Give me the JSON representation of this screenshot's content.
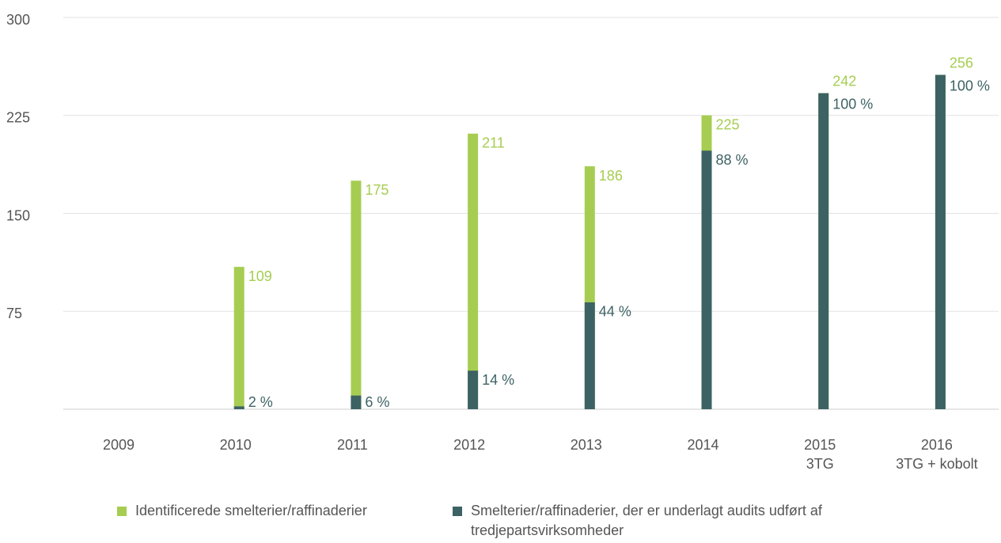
{
  "chart_data": {
    "type": "bar",
    "categories": [
      [
        "2009"
      ],
      [
        "2010"
      ],
      [
        "2011"
      ],
      [
        "2012"
      ],
      [
        "2013"
      ],
      [
        "2014"
      ],
      [
        "2015",
        "3TG"
      ],
      [
        "2016",
        "3TG + kobolt"
      ]
    ],
    "series": [
      {
        "name": "Identificerede smelterier/raffinaderier",
        "color": "#a6cd51",
        "values": [
          null,
          109,
          175,
          211,
          186,
          225,
          242,
          256
        ]
      },
      {
        "name": "Smelterier/raffinaderier, der er underlagt audits udført af tredjepartsvirksomheder",
        "color": "#3d6264",
        "values": [
          null,
          2,
          6,
          14,
          44,
          88,
          100,
          100
        ],
        "value_labels": [
          null,
          "2 %",
          "6 %",
          "14 %",
          "44 %",
          "88 %",
          "100 %",
          "100 %"
        ],
        "share_of": 0
      }
    ],
    "ylim": [
      0,
      300
    ],
    "yticks": [
      75,
      150,
      225,
      300
    ],
    "grid": true
  }
}
